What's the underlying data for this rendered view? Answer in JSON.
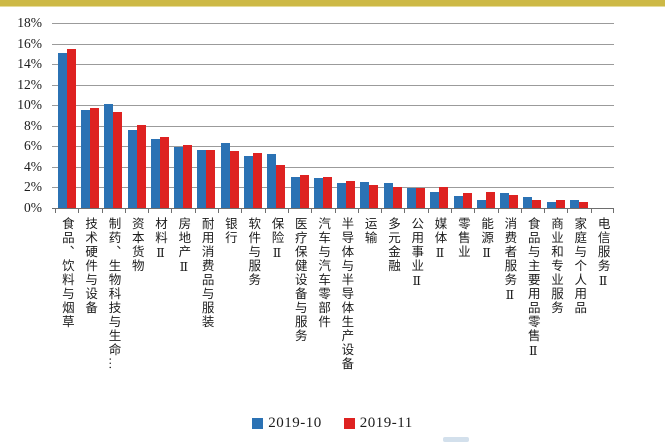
{
  "page": {
    "top_accent_color": "#cdb946",
    "background_color": "#ffffff",
    "gridline_color": "#9b9b9b",
    "axis_color": "#6e6e6e"
  },
  "chart_data": {
    "type": "bar",
    "title": "",
    "xlabel": "",
    "ylabel": "",
    "ylim": [
      0,
      18
    ],
    "grid": true,
    "legend_position": "bottom",
    "y_ticks": [
      "18%",
      "16%",
      "14%",
      "12%",
      "10%",
      "8%",
      "6%",
      "4%",
      "2%",
      "0%"
    ],
    "categories": [
      "食品、饮料与烟草",
      "技术硬件与设备",
      "制药、生物科技与生命…",
      "资本货物",
      "材料Ⅱ",
      "房地产Ⅱ",
      "耐用消费品与服装",
      "银行",
      "软件与服务",
      "保险Ⅱ",
      "医疗保健设备与服务",
      "汽车与汽车零部件",
      "半导体与半导体生产设备",
      "运输",
      "多元金融",
      "公用事业Ⅱ",
      "媒体Ⅱ",
      "零售业",
      "能源Ⅱ",
      "消费者服务Ⅱ",
      "食品与主要用品零售Ⅱ",
      "商业和专业服务",
      "家庭与个人用品",
      "电信服务Ⅱ"
    ],
    "series": [
      {
        "name": "2019-10",
        "color": "#2b72b4",
        "values": [
          15.1,
          9.5,
          10.1,
          7.6,
          6.7,
          5.9,
          5.6,
          6.3,
          5.1,
          5.3,
          3.0,
          2.9,
          2.4,
          2.5,
          2.4,
          1.9,
          1.6,
          1.2,
          0.8,
          1.5,
          1.1,
          0.6,
          0.8,
          0
        ]
      },
      {
        "name": "2019-11",
        "color": "#de2221",
        "values": [
          15.5,
          9.7,
          9.3,
          8.1,
          6.9,
          6.1,
          5.6,
          5.5,
          5.4,
          4.2,
          3.2,
          3.0,
          2.6,
          2.2,
          2.0,
          1.9,
          2.0,
          1.5,
          1.6,
          1.3,
          0.8,
          0.8,
          0.6,
          0
        ]
      }
    ]
  }
}
